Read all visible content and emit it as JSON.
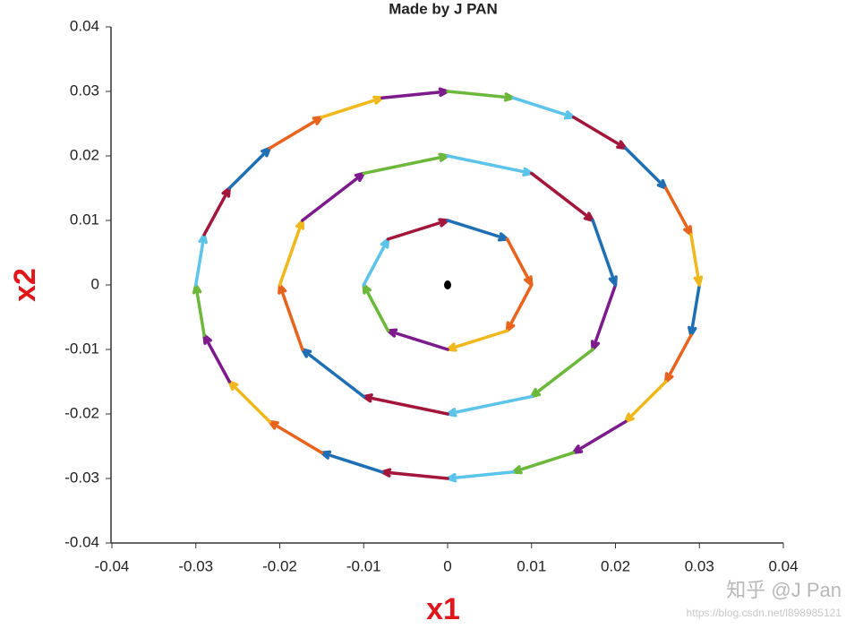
{
  "chart_data": {
    "type": "phase-portrait",
    "title": "Made by J PAN",
    "xlabel": "x1",
    "ylabel": "x2",
    "xlim": [
      -0.04,
      0.04
    ],
    "ylim": [
      -0.04,
      0.04
    ],
    "xticks": [
      -0.04,
      -0.03,
      -0.02,
      -0.01,
      0,
      0.01,
      0.02,
      0.03,
      0.04
    ],
    "yticks": [
      -0.04,
      -0.03,
      -0.02,
      -0.01,
      0,
      0.01,
      0.02,
      0.03,
      0.04
    ],
    "arrow_colors": [
      "#1f6fb4",
      "#e8641e",
      "#f0b81c",
      "#7d1a8c",
      "#6cb83a",
      "#5cc4ea",
      "#a3163c"
    ],
    "series": [
      {
        "x": [
          0.03,
          0.029,
          0.026,
          0.0212,
          0.015,
          0.0078,
          0,
          -0.0078,
          -0.015,
          -0.0212,
          -0.026,
          -0.029,
          -0.03,
          -0.029,
          -0.026,
          -0.0212,
          -0.015,
          -0.0078,
          0,
          0.0078,
          0.015,
          0.0212,
          0.026,
          0.029
        ],
        "y": [
          0,
          -0.0078,
          -0.015,
          -0.0212,
          -0.026,
          -0.029,
          -0.03,
          -0.029,
          -0.026,
          -0.0212,
          -0.015,
          -0.0078,
          0,
          0.0078,
          0.015,
          0.0212,
          0.026,
          0.029,
          0.03,
          0.029,
          0.026,
          0.0212,
          0.015,
          0.0078
        ]
      },
      {
        "x": [
          0.02,
          0.0173,
          0.01,
          0,
          -0.01,
          -0.0173,
          -0.02,
          -0.0173,
          -0.01,
          0,
          0.01,
          0.0173
        ],
        "y": [
          0,
          -0.01,
          -0.0173,
          -0.02,
          -0.0173,
          -0.01,
          0,
          0.01,
          0.0173,
          0.02,
          0.0173,
          0.01
        ]
      },
      {
        "x": [
          0.01,
          0.0071,
          0,
          -0.0071,
          -0.01,
          -0.0071,
          0,
          0.0071
        ],
        "y": [
          0,
          -0.0071,
          -0.01,
          -0.0071,
          0,
          0.0071,
          0.01,
          0.0071
        ]
      }
    ],
    "equilibrium": {
      "x": [
        0
      ],
      "y": [
        0
      ],
      "color": "#000000"
    },
    "annotations": [
      "知乎 @J Pan",
      "https://blog.csdn.net/l898985121"
    ]
  }
}
